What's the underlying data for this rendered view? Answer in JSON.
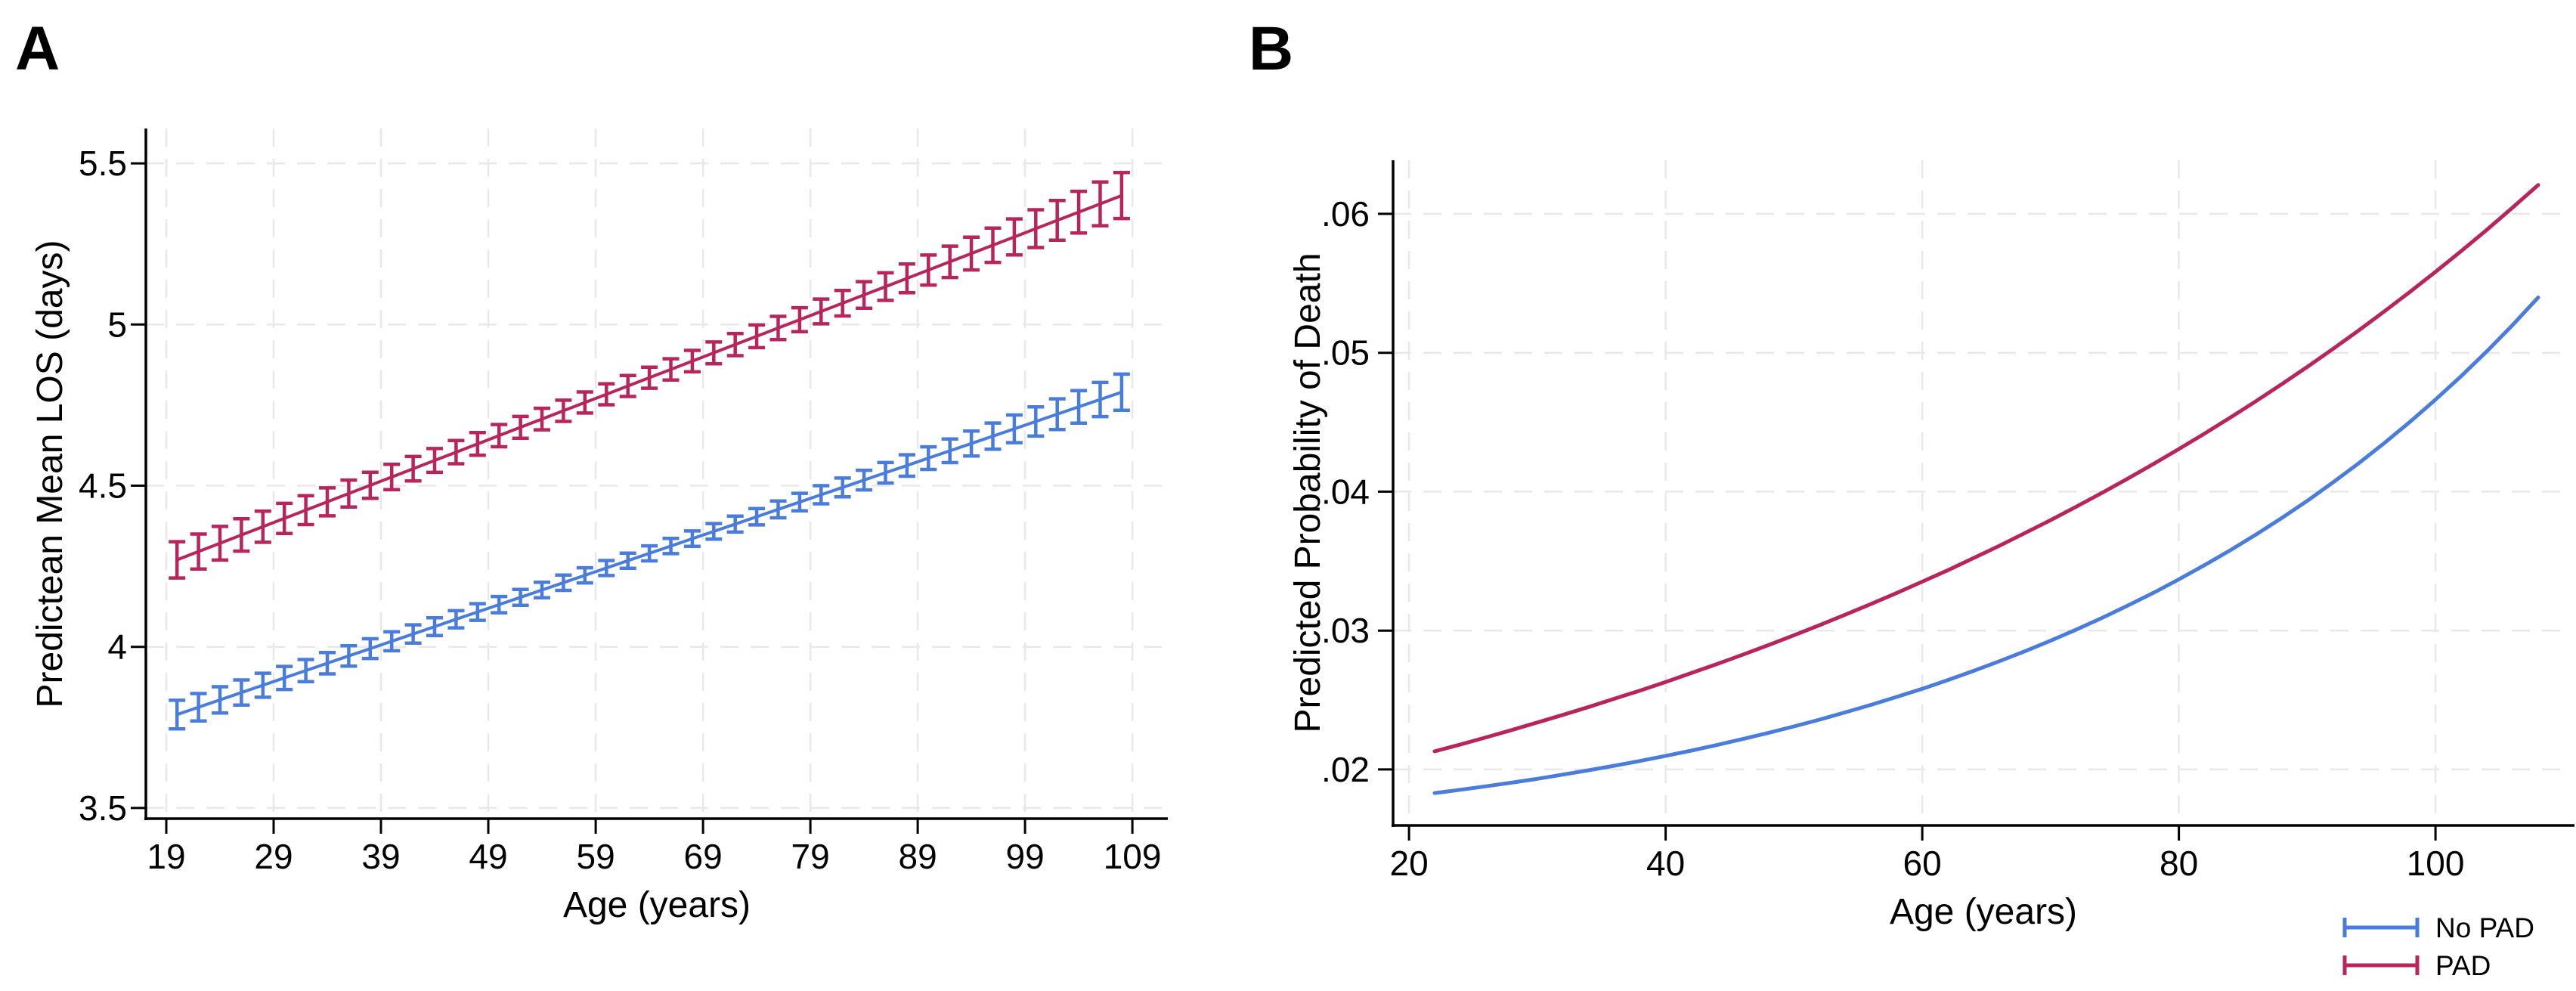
{
  "figure": {
    "background": "#ffffff"
  },
  "panel_a": {
    "letter": "A",
    "x_axis_label": "Age (years)",
    "y_axis_label": "Predictean Mean LOS (days)",
    "x_tick_labels": [
      "19",
      "29",
      "39",
      "49",
      "59",
      "69",
      "79",
      "89",
      "99",
      "109"
    ],
    "y_tick_labels": [
      "3.5",
      "4",
      "4.5",
      "5",
      "5.5"
    ]
  },
  "panel_b": {
    "letter": "B",
    "x_axis_label": "Age (years)",
    "y_axis_label": "Predicted Probability of Death",
    "x_tick_labels": [
      "20",
      "40",
      "60",
      "80",
      "100"
    ],
    "y_tick_labels": [
      ".02",
      ".03",
      ".04",
      ".05",
      ".06"
    ]
  },
  "legend": {
    "position": "bottom-right",
    "items": [
      {
        "label": "No PAD",
        "color": "#4a7cdb"
      },
      {
        "label": "PAD",
        "color": "#b7255c"
      }
    ]
  },
  "colors": {
    "no_pad": "#4a7cdb",
    "pad": "#b7255c",
    "gridline": "#e8e8e8",
    "axis": "#000000"
  },
  "chart_data": [
    {
      "id": "A",
      "type": "line",
      "title": "",
      "xlabel": "Age (years)",
      "ylabel": "Predictean Mean LOS (days)",
      "grid": true,
      "error_bars": true,
      "x_ticks": [
        19,
        29,
        39,
        49,
        59,
        69,
        79,
        89,
        99,
        109
      ],
      "y_ticks": [
        3.5,
        4,
        4.5,
        5,
        5.5
      ],
      "y_tick_labels": [
        "3.5",
        "4",
        "4.5",
        "5",
        "5.5"
      ],
      "xlim": [
        17.1,
        112.3
      ],
      "ylim": [
        3.467,
        5.608
      ],
      "x": [
        20,
        22,
        24,
        26,
        28,
        30,
        32,
        34,
        36,
        38,
        40,
        42,
        44,
        46,
        48,
        50,
        52,
        54,
        56,
        58,
        60,
        62,
        64,
        66,
        68,
        70,
        72,
        74,
        76,
        78,
        80,
        82,
        84,
        86,
        88,
        90,
        92,
        94,
        96,
        98,
        100,
        102,
        104,
        106,
        108
      ],
      "series": [
        {
          "name": "No PAD",
          "color": "#4a7cdb",
          "values": [
            3.79,
            3.8127,
            3.8355,
            3.8582,
            3.8809,
            3.9036,
            3.9264,
            3.9491,
            3.9718,
            3.9945,
            4.0173,
            4.04,
            4.0627,
            4.0855,
            4.1082,
            4.1309,
            4.1536,
            4.1764,
            4.1991,
            4.2218,
            4.2445,
            4.2673,
            4.29,
            4.3127,
            4.3355,
            4.3582,
            4.3809,
            4.4036,
            4.4264,
            4.4491,
            4.4718,
            4.4945,
            4.5173,
            4.54,
            4.5627,
            4.5855,
            4.6082,
            4.6309,
            4.6536,
            4.6764,
            4.6991,
            4.7218,
            4.7445,
            4.7673,
            4.79
          ],
          "ci_half": [
            0.0443,
            0.0425,
            0.0407,
            0.039,
            0.0373,
            0.0358,
            0.0343,
            0.033,
            0.0317,
            0.0305,
            0.0294,
            0.0283,
            0.0274,
            0.0266,
            0.0258,
            0.0252,
            0.0246,
            0.0242,
            0.0238,
            0.0235,
            0.0234,
            0.0233,
            0.0234,
            0.0236,
            0.0239,
            0.0243,
            0.0248,
            0.0254,
            0.0262,
            0.0271,
            0.0281,
            0.0292,
            0.0305,
            0.0318,
            0.0333,
            0.035,
            0.0367,
            0.0387,
            0.0407,
            0.0429,
            0.0452,
            0.0477,
            0.0503,
            0.0531,
            0.056
          ]
        },
        {
          "name": "PAD",
          "color": "#b7255c",
          "values": [
            4.27,
            4.2957,
            4.3214,
            4.347,
            4.3727,
            4.3984,
            4.4241,
            4.4498,
            4.4755,
            4.5011,
            4.5268,
            4.5525,
            4.5782,
            4.6039,
            4.6295,
            4.6552,
            4.6809,
            4.7066,
            4.7323,
            4.758,
            4.7836,
            4.8093,
            4.835,
            4.8607,
            4.8864,
            4.912,
            4.9377,
            4.9634,
            4.9891,
            5.0148,
            5.0405,
            5.0661,
            5.0918,
            5.1175,
            5.1432,
            5.1689,
            5.1945,
            5.2202,
            5.2459,
            5.2716,
            5.2973,
            5.323,
            5.3486,
            5.3743,
            5.4
          ],
          "ci_half": [
            0.0563,
            0.0542,
            0.0521,
            0.0502,
            0.0483,
            0.0466,
            0.0449,
            0.0433,
            0.0418,
            0.0405,
            0.0392,
            0.038,
            0.037,
            0.036,
            0.0352,
            0.0345,
            0.0339,
            0.0334,
            0.033,
            0.0327,
            0.0326,
            0.0326,
            0.0327,
            0.0329,
            0.0333,
            0.0338,
            0.0344,
            0.0352,
            0.0361,
            0.0372,
            0.0384,
            0.0397,
            0.0412,
            0.0428,
            0.0446,
            0.0465,
            0.0486,
            0.0509,
            0.0533,
            0.0559,
            0.0586,
            0.0616,
            0.0646,
            0.0679,
            0.0713
          ]
        }
      ]
    },
    {
      "id": "B",
      "type": "line",
      "title": "",
      "xlabel": "Age (years)",
      "ylabel": "Predicted Probability of Death",
      "grid": true,
      "error_bars": false,
      "legend_position": "bottom-right",
      "x_ticks": [
        20,
        40,
        60,
        80,
        100
      ],
      "y_ticks": [
        0.02,
        0.03,
        0.04,
        0.05,
        0.06
      ],
      "y_tick_labels": [
        ".02",
        ".03",
        ".04",
        ".05",
        ".06"
      ],
      "xlim": [
        18.76,
        110.83
      ],
      "ylim": [
        0.01597,
        0.06386
      ],
      "x": [
        22,
        24,
        26,
        28,
        30,
        32,
        34,
        36,
        38,
        40,
        42,
        44,
        46,
        48,
        50,
        52,
        54,
        56,
        58,
        60,
        62,
        64,
        66,
        68,
        70,
        72,
        74,
        76,
        78,
        80,
        82,
        84,
        86,
        88,
        90,
        92,
        94,
        96,
        98,
        100,
        102,
        104,
        106,
        108
      ],
      "series": [
        {
          "name": "No PAD",
          "color": "#4a7cdb",
          "values": [
            0.0183,
            0.01854,
            0.01879,
            0.01905,
            0.01933,
            0.01963,
            0.01994,
            0.02027,
            0.02061,
            0.02098,
            0.02136,
            0.02176,
            0.02219,
            0.02263,
            0.0231,
            0.02359,
            0.02411,
            0.02465,
            0.02522,
            0.02581,
            0.02644,
            0.0271,
            0.02779,
            0.02851,
            0.02927,
            0.03007,
            0.03091,
            0.03179,
            0.03271,
            0.03369,
            0.03471,
            0.03578,
            0.03691,
            0.03809,
            0.03934,
            0.04066,
            0.04204,
            0.04349,
            0.04502,
            0.04663,
            0.04832,
            0.05011,
            0.05199,
            0.05398
          ]
        },
        {
          "name": "PAD",
          "color": "#b7255c",
          "values": [
            0.02131,
            0.0218,
            0.02231,
            0.02284,
            0.02338,
            0.02393,
            0.0245,
            0.02509,
            0.02568,
            0.0263,
            0.02694,
            0.02759,
            0.02826,
            0.02895,
            0.02966,
            0.03039,
            0.03114,
            0.03191,
            0.0327,
            0.03352,
            0.03435,
            0.03522,
            0.0361,
            0.03702,
            0.03795,
            0.03892,
            0.03991,
            0.04093,
            0.04199,
            0.04307,
            0.04418,
            0.04533,
            0.04651,
            0.04773,
            0.04898,
            0.05027,
            0.0516,
            0.05297,
            0.05438,
            0.05583,
            0.05732,
            0.05886,
            0.06045,
            0.06208
          ]
        }
      ]
    }
  ]
}
